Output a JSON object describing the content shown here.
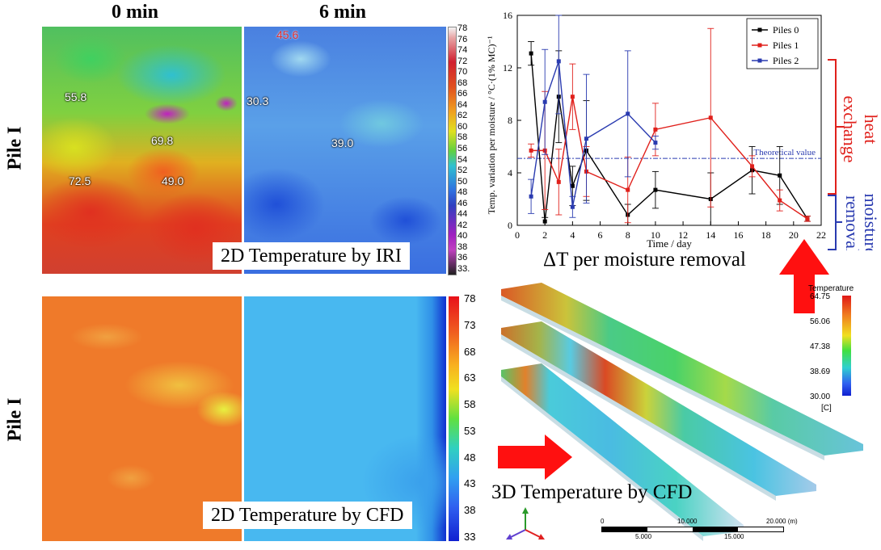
{
  "headers": {
    "col1": "0 min",
    "col2": "6 min",
    "row1": "Pile I",
    "row2": "Pile I"
  },
  "iri": {
    "caption": "2D Temperature by IRI",
    "points_0min": [
      "55.8",
      "69.8",
      "72.5",
      "49.0"
    ],
    "points_6min": [
      "45.6",
      "30.3",
      "39.0"
    ],
    "colorbar_ticks": [
      "78",
      "76",
      "74",
      "72",
      "70",
      "68",
      "66",
      "64",
      "62",
      "60",
      "58",
      "56",
      "54",
      "52",
      "50",
      "48",
      "46",
      "44",
      "42",
      "40",
      "38",
      "36",
      "33."
    ]
  },
  "cfd2d": {
    "caption": "2D Temperature by CFD",
    "colorbar_ticks": [
      "78",
      "73",
      "68",
      "63",
      "58",
      "53",
      "48",
      "43",
      "38",
      "33"
    ]
  },
  "cfd3d": {
    "caption": "3D Temperature by CFD",
    "legend_title": "Temperature",
    "legend_ticks": [
      "64.75",
      "56.06",
      "47.38",
      "38.69",
      "30.00"
    ],
    "legend_unit": "[C]",
    "scale_ticks_top": [
      "0",
      "10.000",
      "20.000 (m)"
    ],
    "scale_ticks_bottom": [
      "5.000",
      "15.000"
    ]
  },
  "chart_title": "ΔT per moisture removal",
  "side_labels": {
    "heat_line1": "heat",
    "heat_line2": "exchange",
    "moisture_line1": "moisture",
    "moisture_line2": "removal"
  },
  "chart_data": {
    "type": "line",
    "xlabel": "Time / day",
    "ylabel": "Temp. variation per moisture  / °C·(1% MC)⁻¹",
    "xlim": [
      0,
      22
    ],
    "ylim": [
      0,
      16
    ],
    "xticks": [
      0,
      2,
      4,
      6,
      8,
      10,
      12,
      14,
      16,
      18,
      20,
      22
    ],
    "yticks": [
      0,
      4,
      8,
      12,
      16
    ],
    "reference_line": {
      "label": "Theoretical value",
      "y": 5.1
    },
    "legend_position": "top-right",
    "series": [
      {
        "name": "Piles 0",
        "color": "#000000",
        "x": [
          1,
          2,
          3,
          4,
          5,
          8,
          10,
          14,
          17,
          19,
          21
        ],
        "y": [
          13.1,
          0.3,
          9.8,
          3.0,
          5.7,
          0.8,
          2.7,
          2.0,
          4.2,
          3.8,
          0.5
        ],
        "err": [
          0.9,
          0.3,
          3.5,
          1.5,
          3.8,
          0.8,
          1.4,
          2.0,
          1.8,
          2.2,
          0.2
        ]
      },
      {
        "name": "Piles 1",
        "color": "#e0201b",
        "x": [
          1,
          2,
          3,
          4,
          5,
          8,
          10,
          14,
          17,
          19,
          21
        ],
        "y": [
          5.7,
          5.7,
          3.3,
          9.8,
          4.1,
          2.7,
          7.3,
          8.2,
          4.5,
          1.9,
          0.5
        ],
        "err": [
          0.5,
          4.5,
          2.5,
          2.5,
          1.9,
          2.5,
          2.0,
          6.8,
          0.8,
          0.8,
          0.2
        ]
      },
      {
        "name": "Piles 2",
        "color": "#2a3bb0",
        "x": [
          1,
          2,
          3,
          4,
          5,
          8,
          10
        ],
        "y": [
          2.2,
          9.4,
          12.5,
          1.4,
          6.6,
          8.5,
          6.3
        ],
        "err": [
          1.3,
          4.0,
          4.0,
          0.8,
          4.9,
          4.8,
          0.5
        ]
      }
    ]
  }
}
